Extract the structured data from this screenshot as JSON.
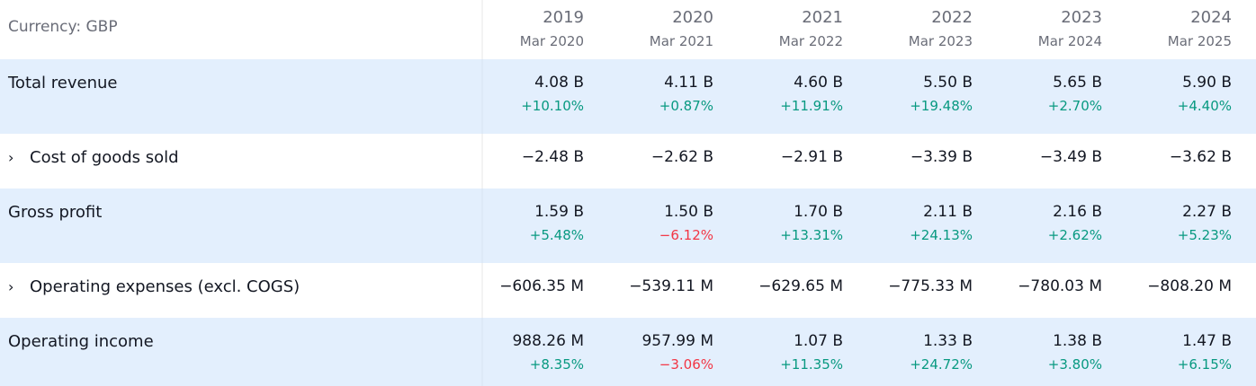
{
  "currency_label": "Currency: GBP",
  "columns": [
    {
      "year": "2019",
      "period": "Mar 2020"
    },
    {
      "year": "2020",
      "period": "Mar 2021"
    },
    {
      "year": "2021",
      "period": "Mar 2022"
    },
    {
      "year": "2022",
      "period": "Mar 2023"
    },
    {
      "year": "2023",
      "period": "Mar 2024"
    },
    {
      "year": "2024",
      "period": "Mar 2025"
    }
  ],
  "rows": {
    "total_revenue": {
      "label": "Total revenue",
      "values": [
        "4.08 B",
        "4.11 B",
        "4.60 B",
        "5.50 B",
        "5.65 B",
        "5.90 B"
      ],
      "changes": [
        "+10.10%",
        "+0.87%",
        "+11.91%",
        "+19.48%",
        "+2.70%",
        "+4.40%"
      ]
    },
    "cogs": {
      "label": "Cost of goods sold",
      "expand_glyph": "›",
      "values": [
        "−2.48 B",
        "−2.62 B",
        "−2.91 B",
        "−3.39 B",
        "−3.49 B",
        "−3.62 B"
      ]
    },
    "gross_profit": {
      "label": "Gross profit",
      "values": [
        "1.59 B",
        "1.50 B",
        "1.70 B",
        "2.11 B",
        "2.16 B",
        "2.27 B"
      ],
      "changes": [
        "+5.48%",
        "−6.12%",
        "+13.31%",
        "+24.13%",
        "+2.62%",
        "+5.23%"
      ]
    },
    "opex": {
      "label": "Operating expenses (excl. COGS)",
      "expand_glyph": "›",
      "values": [
        "−606.35 M",
        "−539.11 M",
        "−629.65 M",
        "−775.33 M",
        "−780.03 M",
        "−808.20 M"
      ]
    },
    "operating_income": {
      "label": "Operating income",
      "values": [
        "988.26 M",
        "957.99 M",
        "1.07 B",
        "1.33 B",
        "1.38 B",
        "1.47 B"
      ],
      "changes": [
        "+8.35%",
        "−3.06%",
        "+11.35%",
        "+24.72%",
        "+3.80%",
        "+6.15%"
      ]
    }
  },
  "colors": {
    "highlight_row_bg": "#e3effd",
    "positive": "#089981",
    "negative": "#f23645",
    "muted_text": "#6a6d78",
    "text": "#131722"
  }
}
